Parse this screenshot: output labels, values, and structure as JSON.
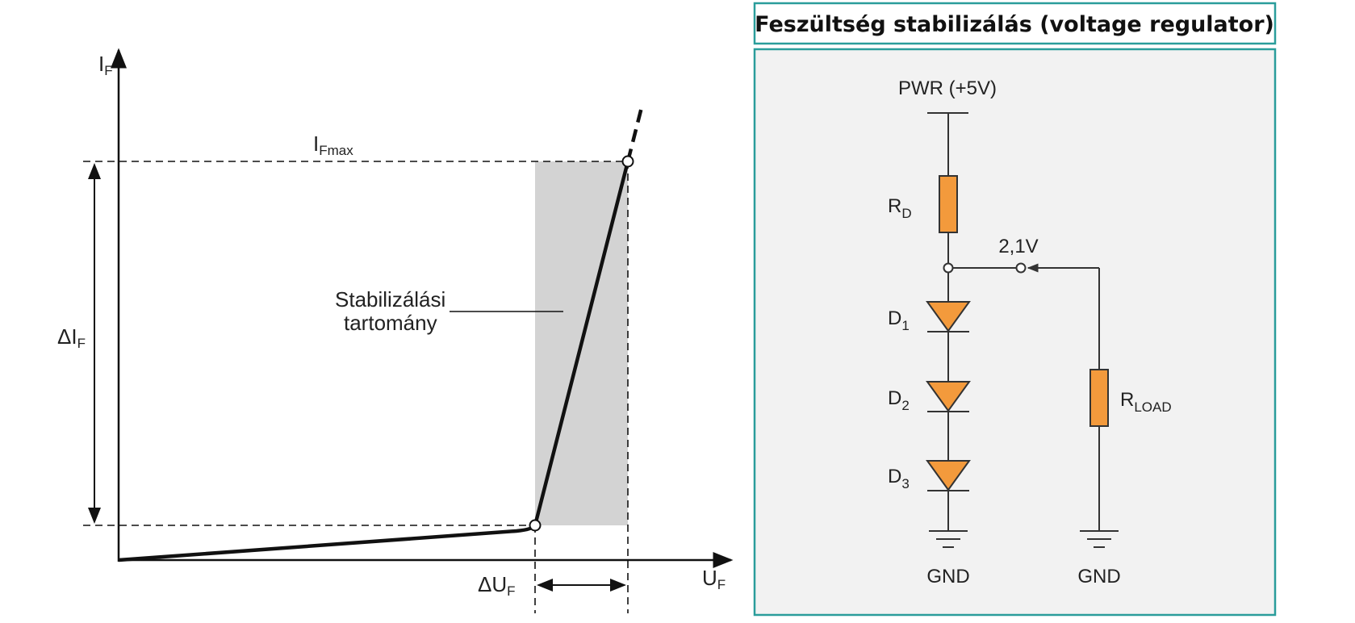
{
  "left_diagram": {
    "axis_y_label": "I",
    "axis_y_sub": "F",
    "axis_x_label": "U",
    "axis_x_sub": "F",
    "ifmax_label": "I",
    "ifmax_sub": "Fmax",
    "delta_i_label": "ΔI",
    "delta_i_sub": "F",
    "delta_u_label": "ΔU",
    "delta_u_sub": "F",
    "region_label_line1": "Stabilizálási",
    "region_label_line2": "tartomány",
    "colors": {
      "region": "#d3d3d3",
      "line": "#111111"
    }
  },
  "right_diagram": {
    "title": "Feszültség stabilizálás (voltage regulator)",
    "pwr_label": "PWR (+5V)",
    "rd_label": "R",
    "rd_sub": "D",
    "voltage_label": "2,1V",
    "d1_label": "D",
    "d1_sub": "1",
    "d2_label": "D",
    "d2_sub": "2",
    "d3_label": "D",
    "d3_sub": "3",
    "rload_label": "R",
    "rload_sub": "LOAD",
    "gnd_left": "GND",
    "gnd_right": "GND",
    "colors": {
      "border": "#2a9d9b",
      "panel_bg": "#f2f2f2",
      "component": "#f39a3c",
      "wire": "#333333"
    }
  }
}
